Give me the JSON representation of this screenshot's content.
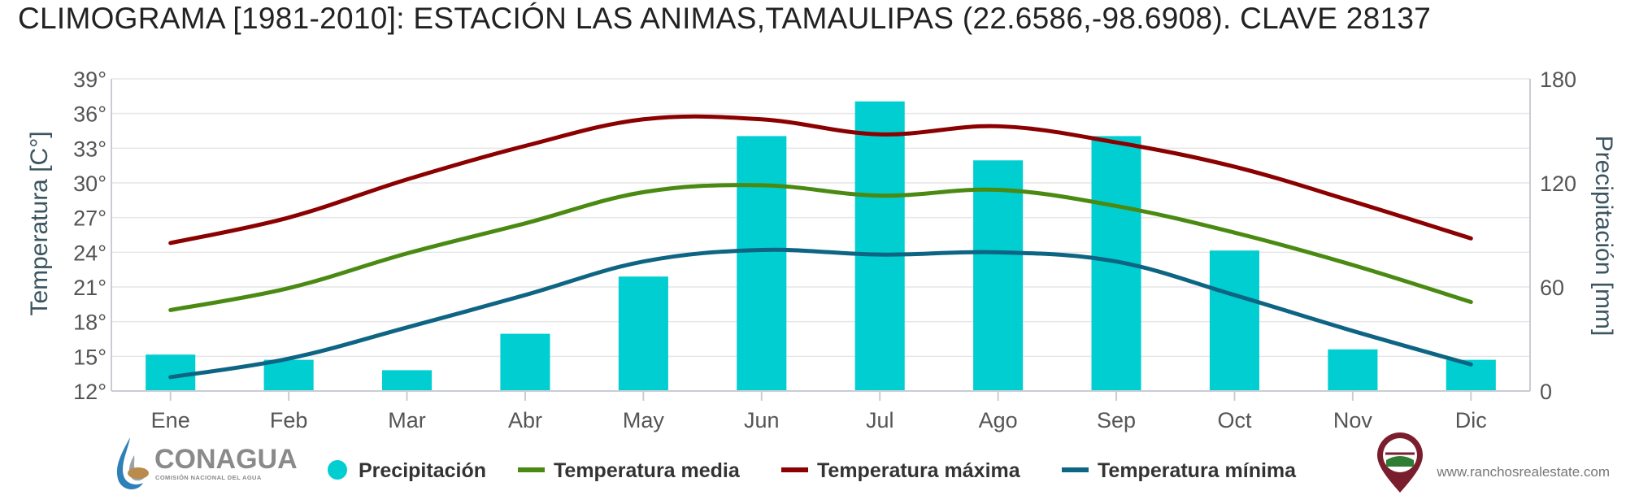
{
  "chart_data": {
    "type": "bar+line",
    "title": "CLIMOGRAMA [1981-2010]: ESTACIÓN LAS ANIMAS,TAMAULIPAS (22.6586,-98.6908). CLAVE 28137",
    "categories": [
      "Ene",
      "Feb",
      "Mar",
      "Abr",
      "May",
      "Jun",
      "Jul",
      "Ago",
      "Sep",
      "Oct",
      "Nov",
      "Dic"
    ],
    "y_left": {
      "label": "Temperatura [C°]",
      "range": [
        12,
        39
      ],
      "ticks": [
        "12°",
        "15°",
        "18°",
        "21°",
        "24°",
        "27°",
        "30°",
        "33°",
        "36°",
        "39°"
      ]
    },
    "y_right": {
      "label": "Precipitación [mm]",
      "range": [
        0,
        180
      ],
      "ticks": [
        "0",
        "60",
        "120",
        "180"
      ]
    },
    "bar_series": {
      "name": "Precipitación",
      "color": "#00ced1",
      "values": [
        21,
        18,
        12,
        33,
        66,
        147,
        167,
        133,
        147,
        81,
        24,
        18
      ]
    },
    "line_series": [
      {
        "name": "Temperatura media",
        "color": "#4a8a12",
        "values": [
          19.0,
          20.9,
          23.9,
          26.5,
          29.2,
          29.8,
          28.9,
          29.4,
          28.0,
          25.7,
          22.9,
          19.7
        ]
      },
      {
        "name": "Temperatura máxima",
        "color": "#8b0000",
        "values": [
          24.8,
          27.0,
          30.3,
          33.2,
          35.5,
          35.5,
          34.2,
          34.9,
          33.5,
          31.4,
          28.4,
          25.2
        ]
      },
      {
        "name": "Temperatura mínima",
        "color": "#0e6583",
        "values": [
          13.2,
          14.8,
          17.5,
          20.3,
          23.2,
          24.2,
          23.8,
          24.0,
          23.2,
          20.3,
          17.2,
          14.3
        ]
      }
    ],
    "grid": true,
    "legend": "bottom"
  },
  "logos": {
    "conagua_name": "CONAGUA",
    "conagua_sub": "COMISIÓN NACIONAL DEL AGUA",
    "website": "www.ranchosrealestate.com"
  }
}
